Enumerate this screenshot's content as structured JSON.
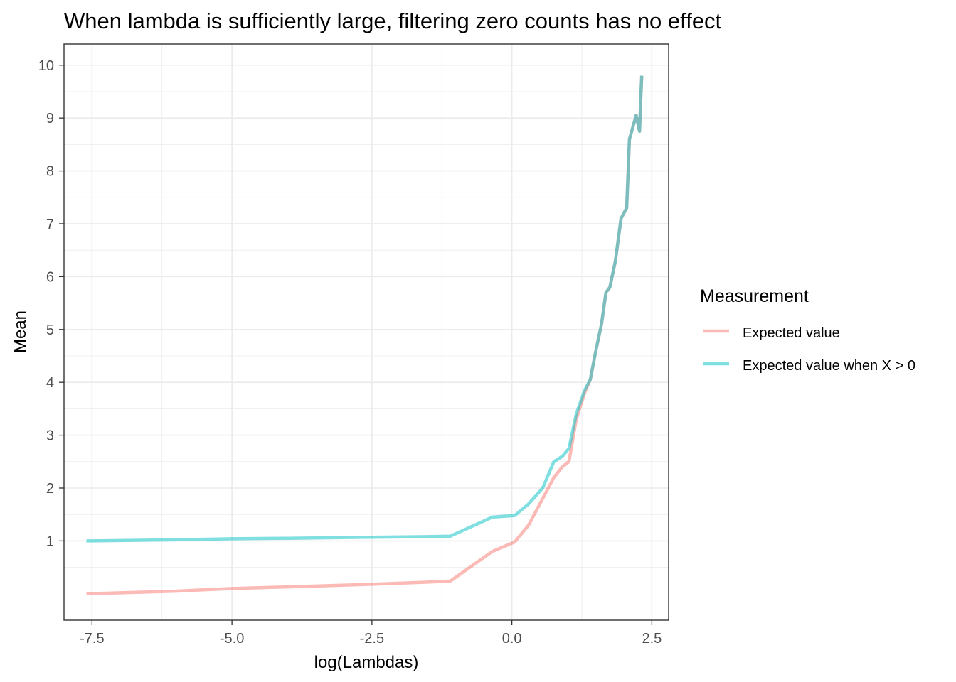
{
  "chart_data": {
    "type": "line",
    "title": "When lambda is sufficiently large, filtering zero counts has no effect",
    "xlabel": "log(Lambdas)",
    "ylabel": "Mean",
    "xlim": [
      -8.0,
      2.8
    ],
    "ylim": [
      -0.5,
      10.4
    ],
    "x_ticks": [
      -7.5,
      -5.0,
      -2.5,
      0.0,
      2.5
    ],
    "x_tick_labels": [
      "-7.5",
      "-5.0",
      "-2.5",
      "0.0",
      "2.5"
    ],
    "y_ticks": [
      1,
      2,
      3,
      4,
      5,
      6,
      7,
      8,
      9,
      10
    ],
    "y_tick_labels": [
      "1",
      "2",
      "3",
      "4",
      "5",
      "6",
      "7",
      "8",
      "9",
      "10"
    ],
    "grid": true,
    "legend": {
      "title": "Measurement",
      "position": "right"
    },
    "series": [
      {
        "name": "Expected value",
        "color": "#F8766D",
        "x": [
          -7.6,
          -6.0,
          -5.0,
          -4.0,
          -2.5,
          -1.5,
          -1.1,
          -0.35,
          0.05,
          0.3,
          0.55,
          0.75,
          0.9,
          1.02,
          1.15,
          1.3,
          1.4,
          1.5,
          1.6,
          1.68,
          1.75,
          1.85,
          1.95,
          2.05,
          2.1,
          2.18,
          2.22,
          2.26,
          2.28,
          2.3,
          2.32
        ],
        "y": [
          0.0,
          0.05,
          0.1,
          0.13,
          0.18,
          0.22,
          0.24,
          0.8,
          0.98,
          1.3,
          1.8,
          2.2,
          2.4,
          2.5,
          3.3,
          3.8,
          4.05,
          4.6,
          5.1,
          5.7,
          5.8,
          6.3,
          7.1,
          7.3,
          8.6,
          8.9,
          9.05,
          8.85,
          8.75,
          9.3,
          9.8
        ]
      },
      {
        "name": "Expected value when X > 0",
        "color": "#00BFC4",
        "x": [
          -7.6,
          -6.0,
          -5.0,
          -4.0,
          -2.5,
          -1.5,
          -1.1,
          -0.35,
          0.05,
          0.3,
          0.55,
          0.75,
          0.9,
          1.02,
          1.15,
          1.3,
          1.4,
          1.5,
          1.6,
          1.68,
          1.75,
          1.85,
          1.95,
          2.05,
          2.1,
          2.18,
          2.22,
          2.26,
          2.28,
          2.3,
          2.32
        ],
        "y": [
          1.0,
          1.02,
          1.04,
          1.05,
          1.07,
          1.08,
          1.09,
          1.45,
          1.48,
          1.7,
          2.0,
          2.5,
          2.6,
          2.75,
          3.4,
          3.85,
          4.05,
          4.6,
          5.1,
          5.7,
          5.8,
          6.3,
          7.1,
          7.3,
          8.6,
          8.9,
          9.05,
          8.85,
          8.75,
          9.3,
          9.8
        ]
      }
    ]
  }
}
